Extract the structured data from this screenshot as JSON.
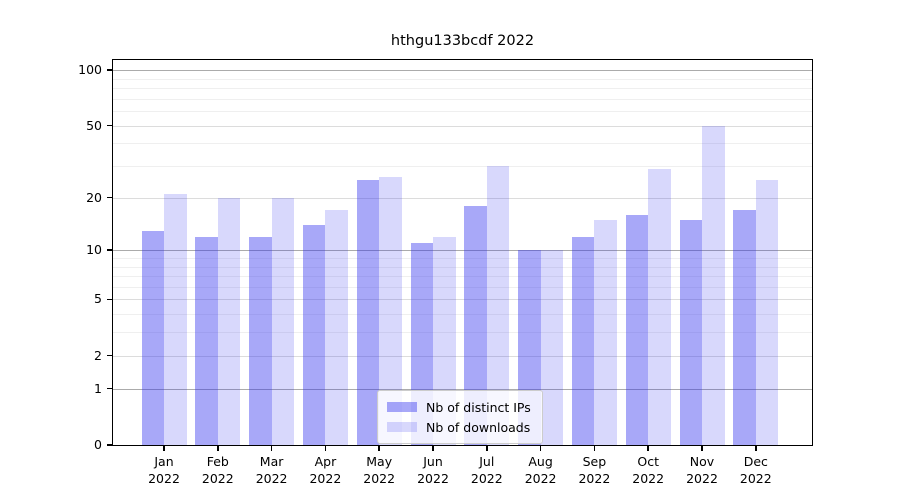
{
  "chart_data": {
    "type": "bar",
    "title": "hthgu133bcdf 2022",
    "xlabel": "",
    "ylabel": "",
    "grid": "on",
    "scale": "log-like y-axis (log10(1+y)), 0 at baseline",
    "ylim": [
      0,
      113
    ],
    "yticks": [
      100,
      50,
      20,
      10,
      5,
      2,
      1,
      0
    ],
    "minor_gridlines": [
      90,
      80,
      70,
      60,
      40,
      30,
      9,
      8,
      7,
      6,
      4,
      3
    ],
    "strong_gridlines": [
      100,
      10,
      1
    ],
    "categories": [
      "Jan 2022",
      "Feb 2022",
      "Mar 2022",
      "Apr 2022",
      "May 2022",
      "Jun 2022",
      "Jul 2022",
      "Aug 2022",
      "Sep 2022",
      "Oct 2022",
      "Nov 2022",
      "Dec 2022"
    ],
    "series": [
      {
        "name": "Nb of distinct IPs",
        "color": "rgba(48,48,238,0.42)",
        "values": [
          13,
          12,
          12,
          14,
          25,
          11,
          18,
          10,
          12,
          16,
          15,
          17
        ]
      },
      {
        "name": "Nb of downloads",
        "color": "rgba(48,48,238,0.19)",
        "values": [
          21,
          20,
          20,
          17,
          26,
          12,
          30,
          10,
          15,
          29,
          50,
          25
        ]
      }
    ],
    "legend": {
      "position": "lower center"
    }
  }
}
